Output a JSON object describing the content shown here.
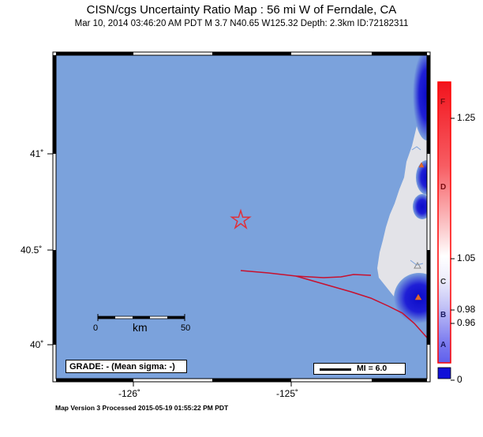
{
  "map": {
    "title": "CISN/cgs Uncertainty Ratio Map : 56 mi W of Ferndale, CA",
    "subtitle": "Mar 10, 2014 03:46:20 AM PDT   M 3.7   N40.65 W125.32   Depth: 2.3km   ID:72182311",
    "footer": "Map Version 3 Processed 2015-05-19 01:55:22 PM PDT",
    "lat_labels": [
      "41˚",
      "40.5˚",
      "40˚"
    ],
    "lon_labels": [
      "-126˚",
      "-125˚"
    ],
    "scale_bar": {
      "unit": "km",
      "start": "0",
      "end": "50"
    },
    "grade_box": "GRADE: - (Mean sigma: -)",
    "mi_legend": "MI = 6.0",
    "epicenter_icon": "star-icon",
    "station_icon": "triangle-icon",
    "colors": {
      "ocean": "#7ba2dc",
      "land": "#e3e3e8",
      "fault": "#c8102e",
      "epicenter": "#e0303a",
      "uncertainty_low": "#1414d2"
    }
  },
  "colorbar": {
    "values": [
      "1.25",
      "1.05",
      "0.98",
      "0.96",
      "0"
    ],
    "grades": [
      "F",
      "D",
      "C",
      "B",
      "A"
    ]
  }
}
